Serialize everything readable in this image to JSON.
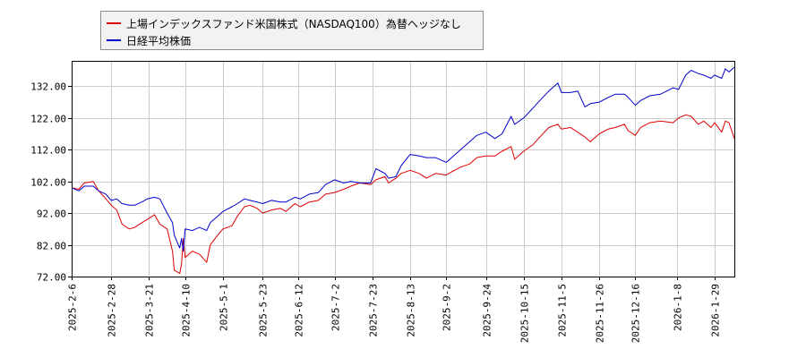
{
  "chart_data": {
    "type": "line",
    "title": "",
    "xlabel": "",
    "ylabel": "",
    "ylim": [
      72,
      140
    ],
    "grid": true,
    "legend": "top-left",
    "y_ticks": [
      "72.00",
      "82.00",
      "92.00",
      "102.00",
      "112.00",
      "122.00",
      "132.00"
    ],
    "x_ticks": [
      "2025-2-6",
      "2025-2-28",
      "2025-3-21",
      "2025-4-10",
      "2025-5-1",
      "2025-5-23",
      "2025-6-12",
      "2025-7-2",
      "2025-7-23",
      "2025-8-13",
      "2025-9-2",
      "2025-9-24",
      "2025-10-15",
      "2025-11-5",
      "2025-11-26",
      "2025-12-16",
      "2026-1-8",
      "2026-1-29"
    ],
    "series": [
      {
        "name": "上場インデックスファンド米国株式（NASDAQ100）為替ヘッジなし",
        "color": "#dd0000",
        "points": [
          [
            "2025-02-06",
            100
          ],
          [
            "2025-02-10",
            99.5
          ],
          [
            "2025-02-13",
            101.5
          ],
          [
            "2025-02-18",
            102
          ],
          [
            "2025-02-21",
            99
          ],
          [
            "2025-02-25",
            96.5
          ],
          [
            "2025-02-28",
            94.5
          ],
          [
            "2025-03-03",
            93
          ],
          [
            "2025-03-06",
            88.5
          ],
          [
            "2025-03-10",
            87
          ],
          [
            "2025-03-13",
            87.5
          ],
          [
            "2025-03-17",
            89
          ],
          [
            "2025-03-20",
            90
          ],
          [
            "2025-03-24",
            91.5
          ],
          [
            "2025-03-27",
            88.5
          ],
          [
            "2025-03-31",
            87
          ],
          [
            "2025-04-03",
            80
          ],
          [
            "2025-04-04",
            74
          ],
          [
            "2025-04-07",
            73
          ],
          [
            "2025-04-08",
            76
          ],
          [
            "2025-04-09",
            84
          ],
          [
            "2025-04-10",
            78
          ],
          [
            "2025-04-14",
            80
          ],
          [
            "2025-04-18",
            79
          ],
          [
            "2025-04-22",
            76.5
          ],
          [
            "2025-04-24",
            82
          ],
          [
            "2025-04-28",
            85
          ],
          [
            "2025-05-01",
            87
          ],
          [
            "2025-05-06",
            88
          ],
          [
            "2025-05-09",
            91
          ],
          [
            "2025-05-13",
            94
          ],
          [
            "2025-05-16",
            94.5
          ],
          [
            "2025-05-20",
            93.5
          ],
          [
            "2025-05-23",
            92
          ],
          [
            "2025-05-28",
            93
          ],
          [
            "2025-06-02",
            93.5
          ],
          [
            "2025-06-05",
            92.5
          ],
          [
            "2025-06-10",
            95
          ],
          [
            "2025-06-13",
            94
          ],
          [
            "2025-06-18",
            95.5
          ],
          [
            "2025-06-23",
            96
          ],
          [
            "2025-06-27",
            98
          ],
          [
            "2025-07-02",
            98.5
          ],
          [
            "2025-07-07",
            99.5
          ],
          [
            "2025-07-11",
            100.5
          ],
          [
            "2025-07-16",
            101.5
          ],
          [
            "2025-07-22",
            101
          ],
          [
            "2025-07-25",
            102.5
          ],
          [
            "2025-07-30",
            103.5
          ],
          [
            "2025-08-01",
            101.5
          ],
          [
            "2025-08-05",
            103
          ],
          [
            "2025-08-08",
            104.5
          ],
          [
            "2025-08-13",
            105.5
          ],
          [
            "2025-08-18",
            104.5
          ],
          [
            "2025-08-22",
            103
          ],
          [
            "2025-08-27",
            104.5
          ],
          [
            "2025-09-02",
            104
          ],
          [
            "2025-09-05",
            105
          ],
          [
            "2025-09-10",
            106.5
          ],
          [
            "2025-09-15",
            107.5
          ],
          [
            "2025-09-19",
            109.5
          ],
          [
            "2025-09-24",
            110
          ],
          [
            "2025-09-29",
            110
          ],
          [
            "2025-10-03",
            111.5
          ],
          [
            "2025-10-08",
            113
          ],
          [
            "2025-10-10",
            109
          ],
          [
            "2025-10-15",
            111.5
          ],
          [
            "2025-10-20",
            113.5
          ],
          [
            "2025-10-24",
            116
          ],
          [
            "2025-10-29",
            119
          ],
          [
            "2025-11-03",
            120
          ],
          [
            "2025-11-05",
            118.5
          ],
          [
            "2025-11-10",
            119
          ],
          [
            "2025-11-14",
            117.5
          ],
          [
            "2025-11-18",
            116
          ],
          [
            "2025-11-21",
            114.5
          ],
          [
            "2025-11-26",
            117
          ],
          [
            "2025-12-01",
            118.5
          ],
          [
            "2025-12-05",
            119
          ],
          [
            "2025-12-10",
            120
          ],
          [
            "2025-12-12",
            118
          ],
          [
            "2025-12-16",
            116.5
          ],
          [
            "2025-12-19",
            119
          ],
          [
            "2025-12-24",
            120.5
          ],
          [
            "2025-12-30",
            121
          ],
          [
            "2026-01-06",
            120.5
          ],
          [
            "2026-01-09",
            122
          ],
          [
            "2026-01-13",
            123
          ],
          [
            "2026-01-16",
            122.5
          ],
          [
            "2026-01-20",
            120
          ],
          [
            "2026-01-23",
            121
          ],
          [
            "2026-01-27",
            119
          ],
          [
            "2026-01-29",
            120.5
          ],
          [
            "2026-02-02",
            117.5
          ],
          [
            "2026-02-04",
            121
          ],
          [
            "2026-02-06",
            120.5
          ],
          [
            "2026-02-09",
            115.5
          ]
        ]
      },
      {
        "name": "日経平均株価",
        "color": "#0000cc",
        "points": [
          [
            "2025-02-06",
            100
          ],
          [
            "2025-02-10",
            99
          ],
          [
            "2025-02-13",
            100.5
          ],
          [
            "2025-02-18",
            100.5
          ],
          [
            "2025-02-21",
            99
          ],
          [
            "2025-02-25",
            98
          ],
          [
            "2025-02-28",
            96
          ],
          [
            "2025-03-03",
            96.5
          ],
          [
            "2025-03-06",
            95
          ],
          [
            "2025-03-10",
            94.5
          ],
          [
            "2025-03-13",
            94.5
          ],
          [
            "2025-03-17",
            95.5
          ],
          [
            "2025-03-20",
            96.5
          ],
          [
            "2025-03-24",
            97
          ],
          [
            "2025-03-27",
            96.5
          ],
          [
            "2025-03-31",
            92
          ],
          [
            "2025-04-03",
            89
          ],
          [
            "2025-04-04",
            85
          ],
          [
            "2025-04-07",
            81
          ],
          [
            "2025-04-08",
            84
          ],
          [
            "2025-04-09",
            80
          ],
          [
            "2025-04-10",
            87
          ],
          [
            "2025-04-14",
            86.5
          ],
          [
            "2025-04-18",
            87.5
          ],
          [
            "2025-04-22",
            86.5
          ],
          [
            "2025-04-24",
            89
          ],
          [
            "2025-04-28",
            91
          ],
          [
            "2025-05-01",
            92.5
          ],
          [
            "2025-05-06",
            94
          ],
          [
            "2025-05-09",
            95
          ],
          [
            "2025-05-13",
            96.5
          ],
          [
            "2025-05-16",
            96
          ],
          [
            "2025-05-20",
            95.5
          ],
          [
            "2025-05-23",
            95
          ],
          [
            "2025-05-28",
            96
          ],
          [
            "2025-06-02",
            95.5
          ],
          [
            "2025-06-05",
            95.5
          ],
          [
            "2025-06-10",
            97
          ],
          [
            "2025-06-13",
            96.5
          ],
          [
            "2025-06-18",
            98
          ],
          [
            "2025-06-23",
            98.5
          ],
          [
            "2025-06-27",
            101
          ],
          [
            "2025-07-02",
            102.5
          ],
          [
            "2025-07-07",
            101.5
          ],
          [
            "2025-07-11",
            102
          ],
          [
            "2025-07-16",
            101.5
          ],
          [
            "2025-07-22",
            101.5
          ],
          [
            "2025-07-25",
            106
          ],
          [
            "2025-07-30",
            104.5
          ],
          [
            "2025-08-01",
            103
          ],
          [
            "2025-08-05",
            103.5
          ],
          [
            "2025-08-08",
            107
          ],
          [
            "2025-08-13",
            110.5
          ],
          [
            "2025-08-18",
            110
          ],
          [
            "2025-08-22",
            109.5
          ],
          [
            "2025-08-27",
            109.5
          ],
          [
            "2025-09-02",
            108
          ],
          [
            "2025-09-05",
            109.5
          ],
          [
            "2025-09-10",
            112
          ],
          [
            "2025-09-15",
            114.5
          ],
          [
            "2025-09-19",
            116.5
          ],
          [
            "2025-09-24",
            117.5
          ],
          [
            "2025-09-29",
            115.5
          ],
          [
            "2025-10-03",
            117
          ],
          [
            "2025-10-08",
            122.5
          ],
          [
            "2025-10-10",
            120
          ],
          [
            "2025-10-15",
            122
          ],
          [
            "2025-10-20",
            125
          ],
          [
            "2025-10-24",
            127.5
          ],
          [
            "2025-10-29",
            130.5
          ],
          [
            "2025-11-03",
            133
          ],
          [
            "2025-11-05",
            130
          ],
          [
            "2025-11-10",
            130
          ],
          [
            "2025-11-14",
            130.5
          ],
          [
            "2025-11-18",
            125.5
          ],
          [
            "2025-11-21",
            126.5
          ],
          [
            "2025-11-26",
            127
          ],
          [
            "2025-12-01",
            128.5
          ],
          [
            "2025-12-05",
            129.5
          ],
          [
            "2025-12-10",
            129.5
          ],
          [
            "2025-12-12",
            128.5
          ],
          [
            "2025-12-16",
            126
          ],
          [
            "2025-12-19",
            127.5
          ],
          [
            "2025-12-24",
            129
          ],
          [
            "2025-12-30",
            129.5
          ],
          [
            "2026-01-06",
            131.5
          ],
          [
            "2026-01-09",
            131
          ],
          [
            "2026-01-13",
            135.5
          ],
          [
            "2026-01-16",
            137
          ],
          [
            "2026-01-20",
            136
          ],
          [
            "2026-01-23",
            135.5
          ],
          [
            "2026-01-27",
            134.5
          ],
          [
            "2026-01-29",
            135.5
          ],
          [
            "2026-02-02",
            134.5
          ],
          [
            "2026-02-04",
            137.5
          ],
          [
            "2026-02-06",
            136.5
          ],
          [
            "2026-02-09",
            138
          ]
        ]
      }
    ]
  }
}
